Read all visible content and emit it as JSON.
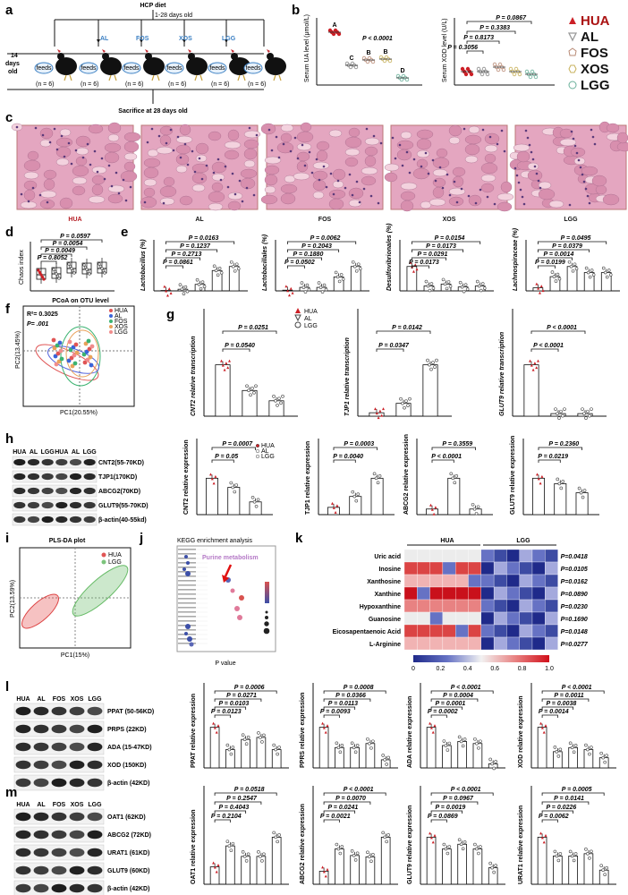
{
  "panels": {
    "a": "a",
    "b": "b",
    "c": "c",
    "d": "d",
    "e": "e",
    "f": "f",
    "g": "g",
    "h": "h",
    "i": "i",
    "j": "j",
    "k": "k",
    "l": "l",
    "m": "m"
  },
  "a": {
    "diet": "HCP diet",
    "age_range": "1-28 days old",
    "start_age": "14 days old",
    "feeds": "feeds",
    "groups": [
      "AL",
      "FOS",
      "XOS",
      "LGG"
    ],
    "n": "(n = 6)",
    "sacrifice": "Sacrifice at 28 days old"
  },
  "b": {
    "ua_ylabel": "Serum UA level (μmol/L)",
    "ua_p": "P < 0.0001",
    "ua_letters": [
      "A",
      "C",
      "B",
      "B",
      "D"
    ],
    "xod_ylabel": "Serum XOD level (U/L)",
    "xod_p": [
      "P = 0.0867",
      "P = 0.3383",
      "P = 0.8173",
      "P = 0.3056"
    ]
  },
  "legend": {
    "items": [
      "HUA",
      "AL",
      "FOS",
      "XOS",
      "LGG"
    ],
    "colors": [
      "#cc2027",
      "#9a9a9a",
      "#e8cfc2",
      "#f1e9b5",
      "#bfe0d7"
    ]
  },
  "c": {
    "labels": [
      "HUA",
      "AL",
      "FOS",
      "XOS",
      "LGG"
    ]
  },
  "d": {
    "ylabel": "Chaos index",
    "p": [
      "P = 0.0597",
      "P = 0.0054",
      "P = 0.0049",
      "P = 0.8052"
    ]
  },
  "e": {
    "charts": [
      {
        "ylabel": "Lactobacillus (%)",
        "p": [
          "P = 0.0163",
          "P = 0.1237",
          "P = 0.2713",
          "P = 0.0861"
        ]
      },
      {
        "ylabel": "Lactobacillales (%)",
        "p": [
          "P = 0.0062",
          "P = 0.2043",
          "P = 0.1880",
          "P = 0.0502"
        ]
      },
      {
        "ylabel": "Desulfovibrionales (%)",
        "p": [
          "P = 0.0154",
          "P = 0.0173",
          "P = 0.0291",
          "P = 0.0173"
        ]
      },
      {
        "ylabel": "Lachnospiraceae (%)",
        "p": [
          "P = 0.0495",
          "P = 0.0379",
          "P = 0.0014",
          "P = 0.0199"
        ]
      }
    ]
  },
  "f": {
    "title": "PCoA on OTU level",
    "r2": "R²= 0.3025",
    "p": "P= .001",
    "xlabel": "PC1(20.55%)",
    "ylabel": "PC2(13.45%)",
    "legend": [
      "HUA",
      "AL",
      "FOS",
      "XOS",
      "LGG"
    ]
  },
  "g": {
    "legend": [
      "HUA",
      "AL",
      "LGG"
    ],
    "charts": [
      {
        "ylabel": "CNT2 relative transcription",
        "p": [
          "P = 0.0251",
          "P = 0.0540"
        ]
      },
      {
        "ylabel": "TJP1 relative transcription",
        "p": [
          "P = 0.0142",
          "P = 0.0347"
        ]
      },
      {
        "ylabel": "GLUT9 relative transcription",
        "p": [
          "P < 0.0001",
          "P < 0.0001"
        ]
      }
    ]
  },
  "h": {
    "lanes": [
      "HUA",
      "AL",
      "LGG",
      "HUA",
      "AL",
      "LGG"
    ],
    "bands": [
      "CNT2(55-70KD)",
      "TJP1(170KD)",
      "ABCG2(70KD)",
      "GLUT9(55-70KD)",
      "β-actin(40-55kd)"
    ],
    "legend": [
      "HUA",
      "AL",
      "LGG"
    ],
    "charts": [
      {
        "ylabel": "CNT2 relative expression",
        "p": [
          "P = 0.0007",
          "P = 0.05"
        ]
      },
      {
        "ylabel": "TJP1 relative expression",
        "p": [
          "P = 0.0003",
          "P = 0.0040"
        ]
      },
      {
        "ylabel": "ABCG2 relative expression",
        "p": [
          "P = 0.3559",
          "P < 0.0001"
        ]
      },
      {
        "ylabel": "GLUT9 relative expression",
        "p": [
          "P = 0.2360",
          "P = 0.0219"
        ]
      }
    ]
  },
  "i": {
    "title": "PLS-DA plot",
    "legend": [
      "HUA",
      "LGG"
    ],
    "xlabel": "PC1(15%)",
    "ylabel": "PC2(13.59%)"
  },
  "j": {
    "title": "KEGG enrichment analysis",
    "highlight": "Purine metabolism",
    "xlabel": "P value"
  },
  "k": {
    "groups": [
      "HUA",
      "LGG"
    ],
    "rows": [
      {
        "name": "Uric acid",
        "p": "P=0.0418"
      },
      {
        "name": "Inosine",
        "p": "P=0.0105"
      },
      {
        "name": "Xanthosine",
        "p": "P=0.0162"
      },
      {
        "name": "Xanthine",
        "p": "P=0.0890"
      },
      {
        "name": "Hypoxanthine",
        "p": "P=0.0230"
      },
      {
        "name": "Guanosine",
        "p": "P=0.1690"
      },
      {
        "name": "Eicosapentaenoic Acid",
        "p": "P=0.0148"
      },
      {
        "name": "L-Arginine",
        "p": "P=0.0277"
      }
    ],
    "scale": [
      "0",
      "0.2",
      "0.4",
      "0.6",
      "0.8",
      "1.0"
    ]
  },
  "l": {
    "lanes": [
      "HUA",
      "AL",
      "FOS",
      "XOS",
      "LGG"
    ],
    "bands": [
      "PPAT (50-56KD)",
      "PRPS (22KD)",
      "ADA (15-47KD)",
      "XOD (150KD)",
      "β-actin (42KD)"
    ],
    "charts": [
      {
        "ylabel": "PPAT relative expression",
        "p": [
          "P = 0.0006",
          "P = 0.0271",
          "P = 0.0103",
          "P = 0.0123"
        ]
      },
      {
        "ylabel": "PPRS relative expression",
        "p": [
          "P = 0.0008",
          "P = 0.0366",
          "P = 0.0113",
          "P = 0.0093"
        ]
      },
      {
        "ylabel": "ADA relative expression",
        "p": [
          "P < 0.0001",
          "P = 0.0004",
          "P = 0.0001",
          "P = 0.0002"
        ]
      },
      {
        "ylabel": "XOD relative expression",
        "p": [
          "P < 0.0001",
          "P = 0.0011",
          "P = 0.0038",
          "P = 0.0014"
        ]
      }
    ]
  },
  "m": {
    "lanes": [
      "HUA",
      "AL",
      "FOS",
      "XOS",
      "LGG"
    ],
    "bands": [
      "OAT1 (62KD)",
      "ABCG2 (72KD)",
      "URAT1 (61KD)",
      "GLUT9 (60KD)",
      "β-actin (42KD)"
    ],
    "charts": [
      {
        "ylabel": "OAT1 relative expression",
        "p": [
          "P = 0.0518",
          "P = 0.2547",
          "P = 0.4043",
          "P = 0.2104"
        ]
      },
      {
        "ylabel": "ABCG2 relative expression",
        "p": [
          "P < 0.0001",
          "P = 0.0070",
          "P = 0.0241",
          "P = 0.0021"
        ]
      },
      {
        "ylabel": "GLUT9 relative expression",
        "p": [
          "P < 0.0001",
          "P = 0.0967",
          "P = 0.0019",
          "P = 0.0869"
        ]
      },
      {
        "ylabel": "URAT1 relative expression",
        "p": [
          "P = 0.0005",
          "P = 0.0141",
          "P = 0.0226",
          "P = 0.0062"
        ]
      }
    ]
  }
}
